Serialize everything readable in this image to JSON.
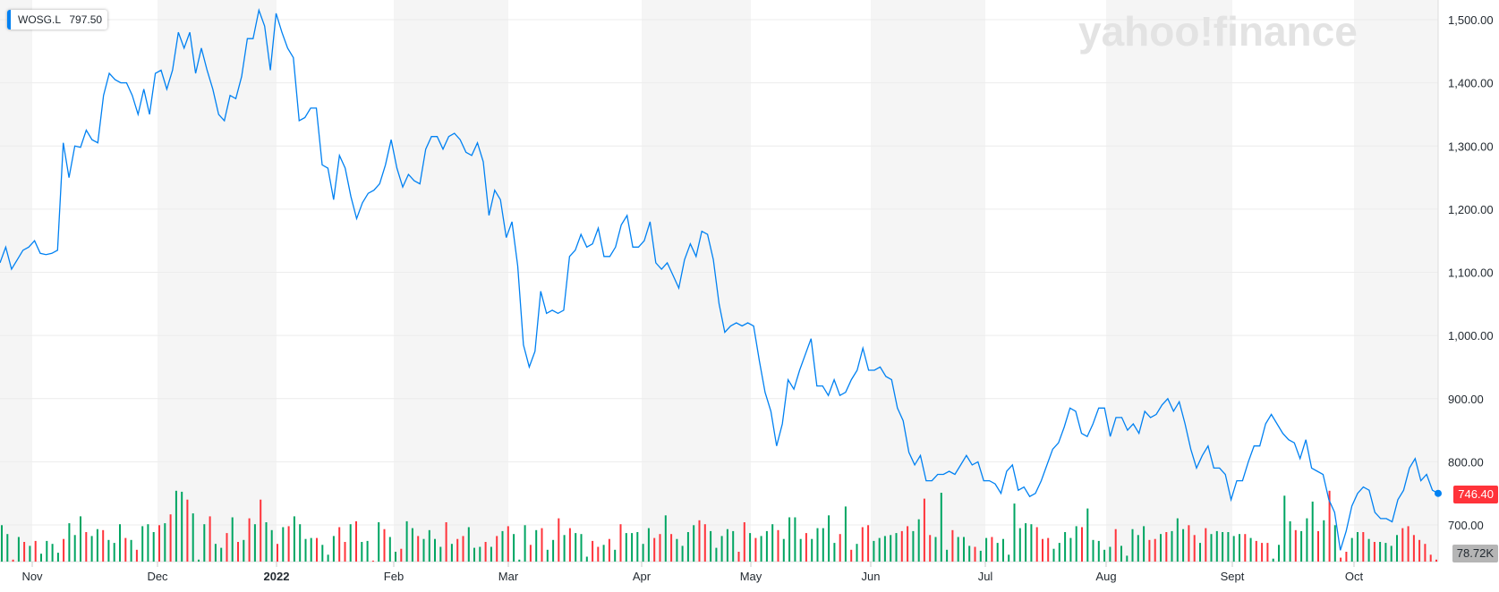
{
  "legend": {
    "ticker": "WOSG.L",
    "value": "797.50"
  },
  "watermark": "yahoo!finance",
  "last_price_label": "746.40",
  "last_volume_label": "78.72K",
  "colors": {
    "line": "#0081f2",
    "up": "#00a562",
    "down": "#ff333a",
    "band": "#f5f5f5",
    "grid": "#ececec",
    "last_price_bg": "#ff333a"
  },
  "chart_data": {
    "type": "line",
    "y_ticks": [
      "700.00",
      "800.00",
      "900.00",
      "1,000.00",
      "1,100.00",
      "1,200.00",
      "1,300.00",
      "1,400.00",
      "1,500.00"
    ],
    "ylim": [
      640,
      1520
    ],
    "x_ticks": [
      "Nov",
      "Dec",
      "2022",
      "Feb",
      "Mar",
      "Apr",
      "May",
      "Jun",
      "Jul",
      "Aug",
      "Sept",
      "Oct"
    ],
    "series": [
      {
        "values": [
          1115,
          1140,
          1105,
          1120,
          1135,
          1140,
          1150,
          1130,
          1128,
          1130,
          1135,
          1305,
          1250,
          1300,
          1298,
          1325,
          1310,
          1305,
          1380,
          1415,
          1405,
          1400,
          1400,
          1380,
          1350,
          1390,
          1350,
          1415,
          1420,
          1390,
          1420,
          1480,
          1455,
          1480,
          1415,
          1455,
          1420,
          1390,
          1350,
          1340,
          1380,
          1375,
          1410,
          1470,
          1470,
          1515,
          1490,
          1420,
          1510,
          1480,
          1455,
          1440,
          1340,
          1345,
          1360,
          1360,
          1270,
          1265,
          1215,
          1285,
          1265,
          1220,
          1185,
          1210,
          1225,
          1230,
          1240,
          1270,
          1310,
          1265,
          1235,
          1255,
          1245,
          1240,
          1295,
          1315,
          1315,
          1295,
          1315,
          1320,
          1310,
          1290,
          1285,
          1305,
          1275,
          1190,
          1230,
          1215,
          1155,
          1180,
          1110,
          985,
          950,
          975,
          1070,
          1035,
          1040,
          1035,
          1040,
          1125,
          1135,
          1160,
          1140,
          1145,
          1170,
          1125,
          1125,
          1140,
          1175,
          1190,
          1140,
          1140,
          1150,
          1180,
          1115,
          1105,
          1115,
          1095,
          1075,
          1120,
          1145,
          1125,
          1165,
          1160,
          1120,
          1050,
          1005,
          1015,
          1020,
          1015,
          1020,
          1015,
          960,
          910,
          880,
          825,
          860,
          930,
          915,
          945,
          970,
          995,
          920,
          920,
          905,
          930,
          905,
          910,
          930,
          945,
          980,
          945,
          945,
          950,
          935,
          930,
          885,
          865,
          815,
          795,
          810,
          770,
          770,
          780,
          780,
          785,
          780,
          795,
          810,
          795,
          800,
          770,
          770,
          765,
          750,
          785,
          795,
          755,
          760,
          745,
          750,
          770,
          795,
          820,
          830,
          855,
          885,
          880,
          845,
          840,
          860,
          885,
          885,
          840,
          870,
          870,
          850,
          860,
          845,
          880,
          870,
          875,
          890,
          900,
          880,
          895,
          860,
          820,
          790,
          810,
          825,
          790,
          790,
          780,
          740,
          770,
          770,
          800,
          825,
          825,
          860,
          875,
          860,
          845,
          835,
          830,
          805,
          835,
          790,
          785,
          780,
          740,
          720,
          660,
          690,
          730,
          750,
          760,
          755,
          720,
          710,
          710,
          705,
          740,
          755,
          790,
          805,
          770,
          780,
          755,
          750
        ]
      }
    ],
    "volume": {
      "values": [
        0.37,
        0.28,
        0.02,
        0.25,
        0.2,
        0.16,
        0.21,
        0.08,
        0.21,
        0.18,
        0.09,
        0.23,
        0.39,
        0.27,
        0.46,
        0.3,
        0.26,
        0.33,
        0.32,
        0.22,
        0.19,
        0.38,
        0.24,
        0.22,
        0.12,
        0.36,
        0.38,
        0.3,
        0.37,
        0.39,
        0.48,
        0.72,
        0.71,
        0.63,
        0.49,
        0.02,
        0.38,
        0.46,
        0.18,
        0.14,
        0.29,
        0.45,
        0.2,
        0.22,
        0.44,
        0.38,
        0.63,
        0.4,
        0.32,
        0.18,
        0.35,
        0.36,
        0.46,
        0.38,
        0.23,
        0.24,
        0.24,
        0.17,
        0.07,
        0.26,
        0.35,
        0.2,
        0.38,
        0.41,
        0.2,
        0.21,
        0.01,
        0.4,
        0.33,
        0.25,
        0.1,
        0.13,
        0.41,
        0.34,
        0.26,
        0.23,
        0.32,
        0.23,
        0.15,
        0.4,
        0.18,
        0.23,
        0.26,
        0.35,
        0.14,
        0.15,
        0.2,
        0.15,
        0.26,
        0.31,
        0.36,
        0.28,
        0.02,
        0.37,
        0.17,
        0.32,
        0.34,
        0.12,
        0.22,
        0.44,
        0.27,
        0.34,
        0.29,
        0.28,
        0.05,
        0.21,
        0.15,
        0.17,
        0.23,
        0.12,
        0.38,
        0.29,
        0.29,
        0.3,
        0.18,
        0.34,
        0.24,
        0.28,
        0.47,
        0.28,
        0.23,
        0.16,
        0.3,
        0.37,
        0.42,
        0.38,
        0.31,
        0.14,
        0.26,
        0.33,
        0.31,
        0.1,
        0.4,
        0.29,
        0.24,
        0.26,
        0.31,
        0.38,
        0.32,
        0.23,
        0.45,
        0.45,
        0.23,
        0.29,
        0.23,
        0.34,
        0.34,
        0.47,
        0.19,
        0.28,
        0.56,
        0.12,
        0.18,
        0.35,
        0.37,
        0.21,
        0.24,
        0.26,
        0.27,
        0.29,
        0.31,
        0.36,
        0.31,
        0.43,
        0.64,
        0.27,
        0.25,
        0.7,
        0.12,
        0.32,
        0.25,
        0.25,
        0.16,
        0.15,
        0.11,
        0.24,
        0.25,
        0.19,
        0.23,
        0.07,
        0.59,
        0.34,
        0.39,
        0.38,
        0.35,
        0.23,
        0.24,
        0.13,
        0.19,
        0.3,
        0.24,
        0.36,
        0.35,
        0.54,
        0.22,
        0.21,
        0.12,
        0.15,
        0.33,
        0.16,
        0.06,
        0.33,
        0.27,
        0.36,
        0.22,
        0.23,
        0.28,
        0.3,
        0.31,
        0.44,
        0.33,
        0.37,
        0.27,
        0.19,
        0.34,
        0.28,
        0.31,
        0.3,
        0.3,
        0.26,
        0.28,
        0.28,
        0.24,
        0.21,
        0.19,
        0.19,
        0.03,
        0.17,
        0.67,
        0.41,
        0.32,
        0.31,
        0.44,
        0.61,
        0.31,
        0.42,
        0.72,
        0.37,
        0.04,
        0.1,
        0.24,
        0.3,
        0.3,
        0.23,
        0.2,
        0.2,
        0.19,
        0.16,
        0.27,
        0.34,
        0.36,
        0.27,
        0.22,
        0.18,
        0.07,
        0.02
      ],
      "up": [
        true,
        true,
        false,
        true,
        false,
        true,
        false,
        true,
        true,
        true,
        true,
        false,
        true,
        true,
        true,
        false,
        true,
        true,
        false,
        true,
        true,
        true,
        false,
        true,
        false,
        true,
        true,
        true,
        false,
        true,
        false,
        true,
        true,
        false,
        true,
        true,
        true,
        false,
        true,
        true,
        false,
        true,
        false,
        true,
        false,
        true,
        false,
        true,
        true,
        false,
        true,
        false,
        true,
        true,
        true,
        true,
        false,
        true,
        true,
        true,
        false,
        false,
        true,
        false,
        true,
        true,
        false,
        true,
        false,
        true,
        true,
        false,
        true,
        true,
        false,
        true,
        true,
        true,
        true,
        false,
        true,
        false,
        false,
        true,
        true,
        true,
        false,
        true,
        false,
        true,
        false,
        true,
        true,
        true,
        false,
        true,
        false,
        true,
        true,
        false,
        true,
        false,
        true,
        true,
        true,
        false,
        false,
        true,
        false,
        true,
        false,
        true,
        true,
        true,
        true,
        true,
        false,
        false,
        true,
        false,
        true,
        true,
        true,
        true,
        false,
        false,
        true,
        true,
        true,
        true,
        true,
        false,
        false,
        true,
        false,
        true,
        true,
        true,
        false,
        true,
        true,
        true,
        true,
        false,
        true,
        true,
        true,
        true,
        true,
        false,
        true,
        false,
        true,
        false,
        false,
        true,
        true,
        true,
        true,
        true,
        false,
        false,
        true,
        true,
        false,
        false,
        true,
        true,
        true,
        false,
        true,
        true,
        true,
        false,
        true,
        true,
        false,
        true,
        true,
        true,
        true,
        true,
        true,
        true,
        false,
        false,
        false,
        true,
        true,
        true,
        true,
        true,
        false,
        true,
        true,
        true,
        true,
        true,
        false,
        true,
        true,
        true,
        true,
        true,
        false,
        false,
        true,
        false,
        true,
        true,
        true,
        false,
        false,
        true,
        false,
        true,
        true,
        true,
        true,
        true,
        true,
        false,
        true,
        false,
        false,
        false,
        true,
        true,
        true,
        true,
        false,
        true,
        true,
        true,
        false,
        true,
        false,
        true,
        false,
        false,
        true,
        true,
        false,
        true,
        false,
        true,
        true,
        true,
        true,
        false,
        false
      ]
    },
    "grid": true
  }
}
